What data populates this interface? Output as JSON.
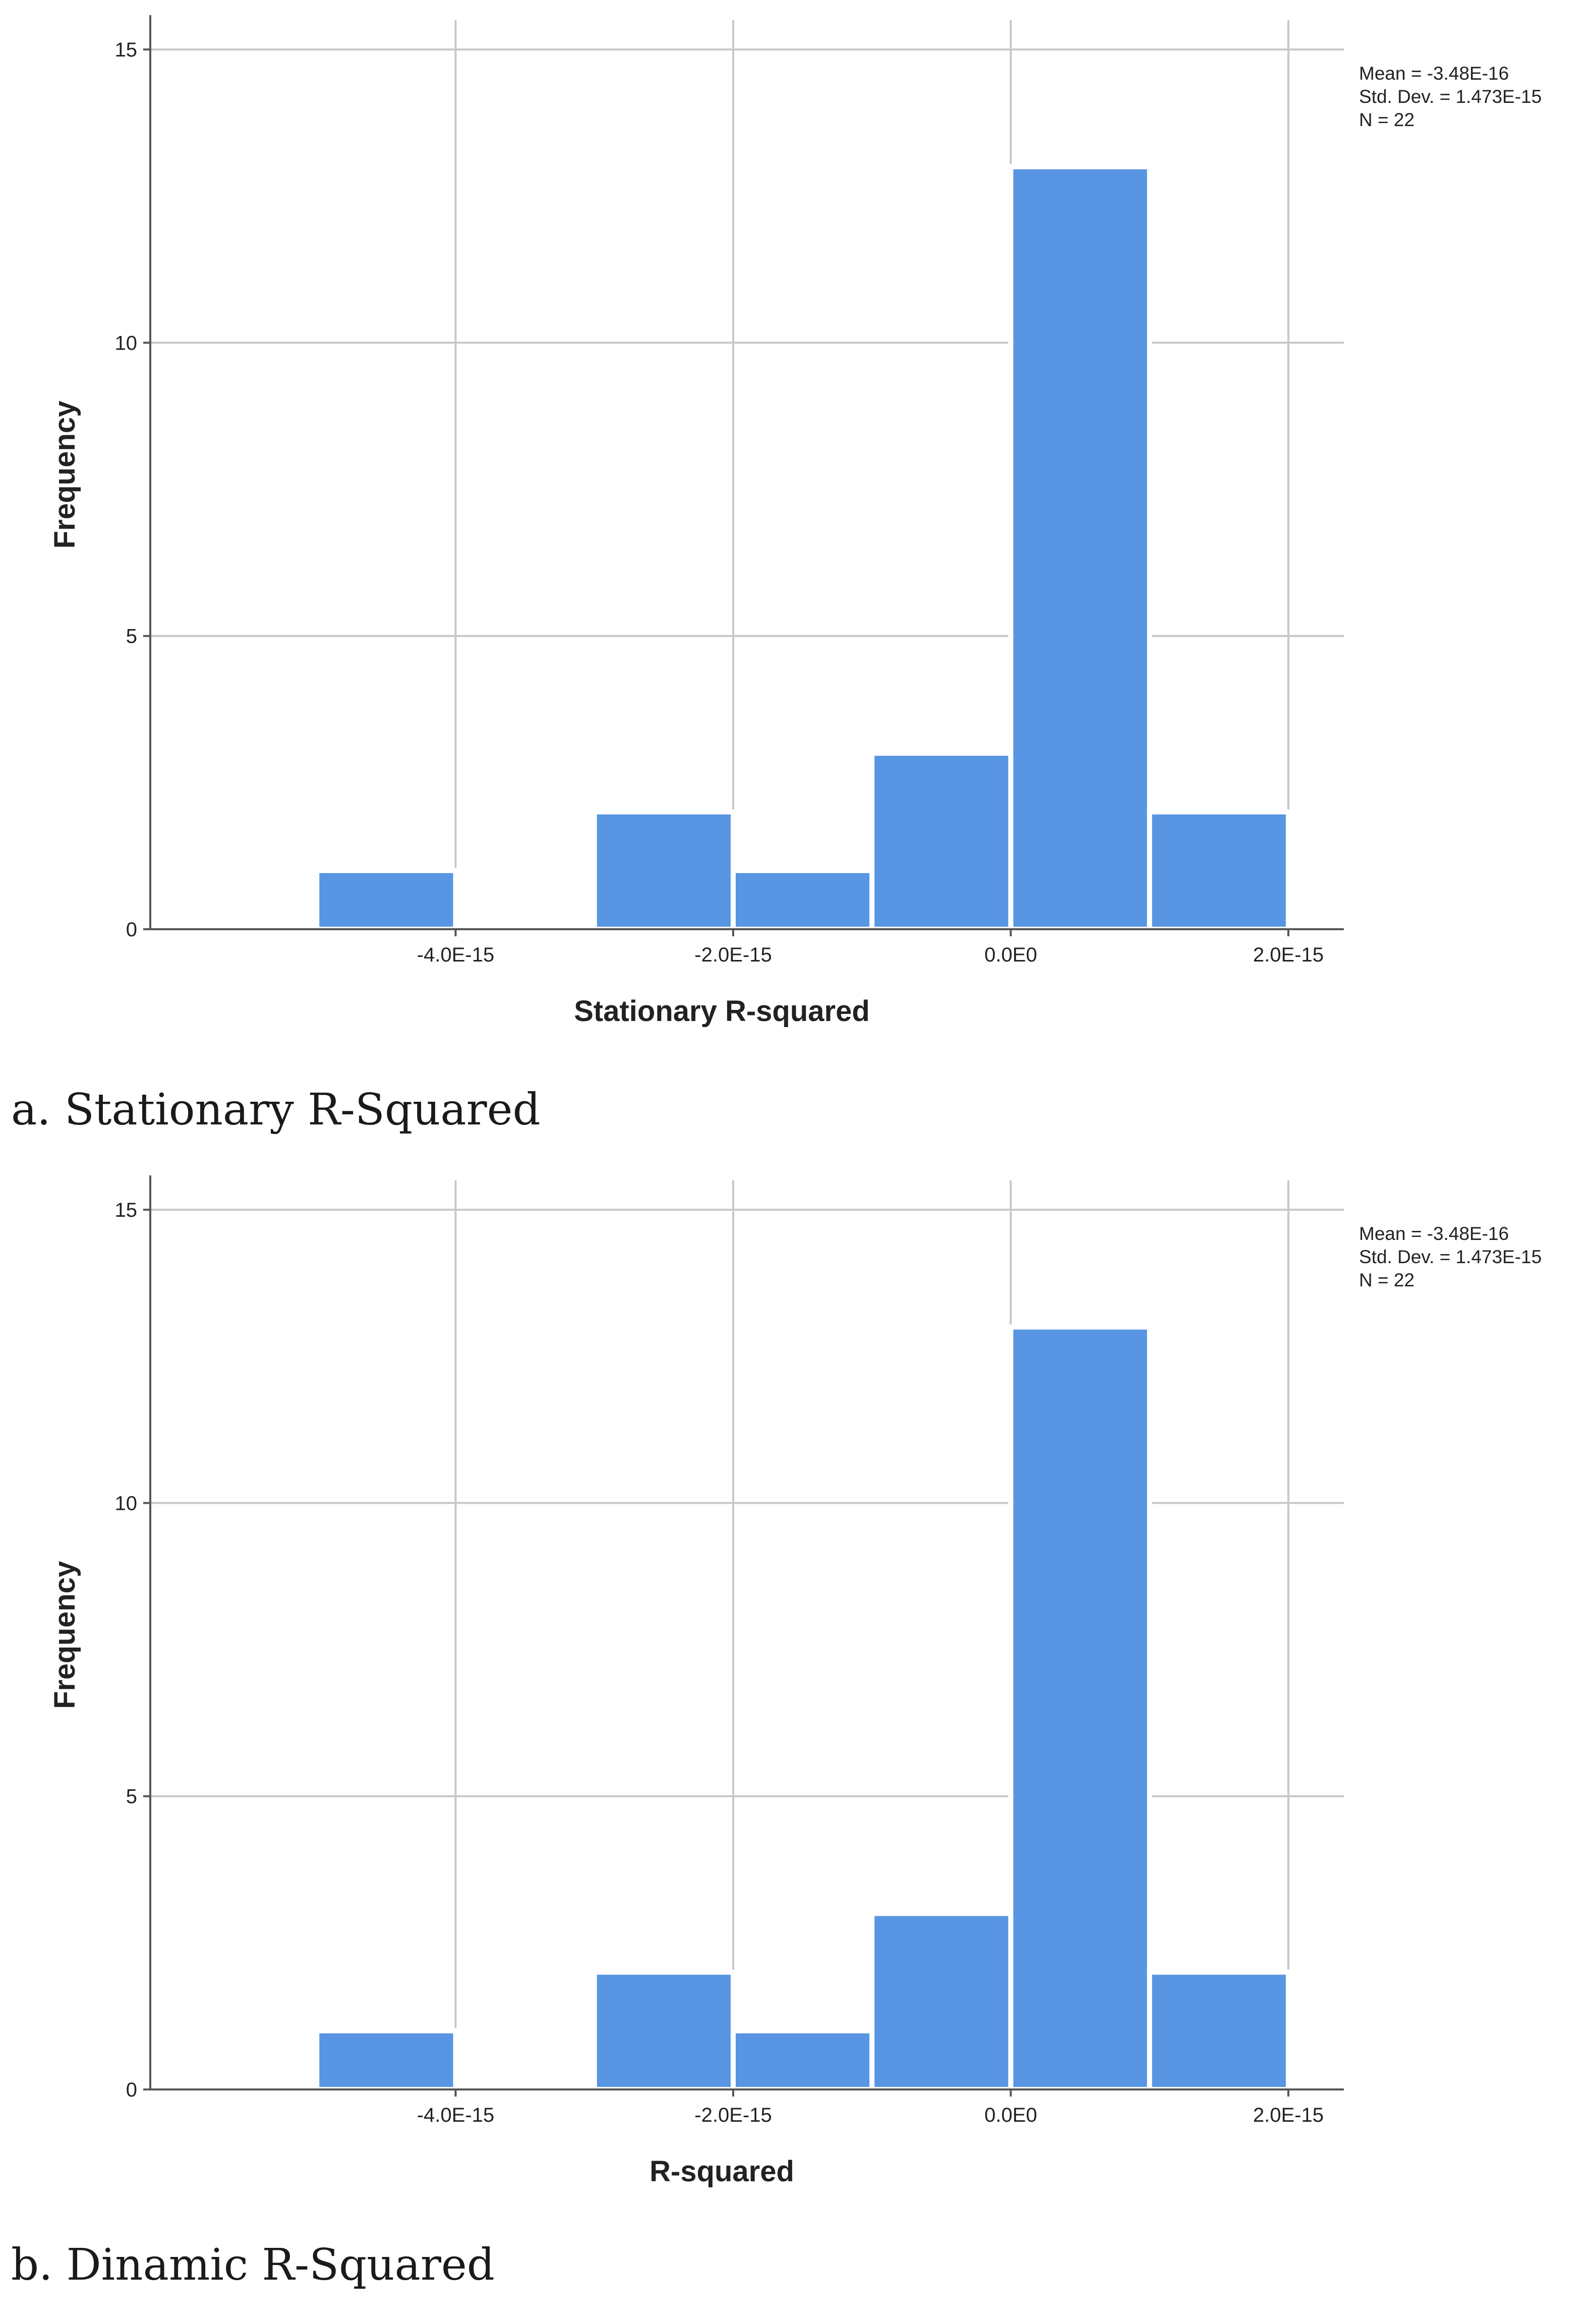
{
  "chart_data": [
    {
      "type": "bar",
      "title": "",
      "xlabel": "Stationary R-squared",
      "ylabel": "Frequency",
      "bins": [
        {
          "start": -5e-15,
          "end": -4e-15,
          "count": 1
        },
        {
          "start": -4e-15,
          "end": -3e-15,
          "count": 0
        },
        {
          "start": -3e-15,
          "end": -2e-15,
          "count": 2
        },
        {
          "start": -2e-15,
          "end": -1e-15,
          "count": 1
        },
        {
          "start": -1e-15,
          "end": 0.0,
          "count": 3
        },
        {
          "start": 0.0,
          "end": 1e-15,
          "count": 13
        },
        {
          "start": 1e-15,
          "end": 2e-15,
          "count": 2
        }
      ],
      "xlim": [
        -6.2e-15,
        2.4e-15
      ],
      "ylim": [
        0,
        15.5
      ],
      "xticks": [
        -4e-15,
        -2e-15,
        0.0,
        2e-15
      ],
      "xtick_labels": [
        "-4.0E-15",
        "-2.0E-15",
        "0.0E0",
        "2.0E-15"
      ],
      "yticks": [
        0,
        5,
        10,
        15
      ],
      "ytick_labels": [
        "0",
        "5",
        "10",
        "15"
      ],
      "grid": true,
      "bar_color": "#5895E3",
      "stats": [
        "Mean = -3.48E-16",
        "Std. Dev. = 1.473E-15",
        "N = 22"
      ],
      "caption": "a. Stationary R-Squared"
    },
    {
      "type": "bar",
      "title": "",
      "xlabel": "R-squared",
      "ylabel": "Frequency",
      "bins": [
        {
          "start": -5e-15,
          "end": -4e-15,
          "count": 1
        },
        {
          "start": -4e-15,
          "end": -3e-15,
          "count": 0
        },
        {
          "start": -3e-15,
          "end": -2e-15,
          "count": 2
        },
        {
          "start": -2e-15,
          "end": -1e-15,
          "count": 1
        },
        {
          "start": -1e-15,
          "end": 0.0,
          "count": 3
        },
        {
          "start": 0.0,
          "end": 1e-15,
          "count": 13
        },
        {
          "start": 1e-15,
          "end": 2e-15,
          "count": 2
        }
      ],
      "xlim": [
        -6.2e-15,
        2.4e-15
      ],
      "ylim": [
        0,
        15.5
      ],
      "xticks": [
        -4e-15,
        -2e-15,
        0.0,
        2e-15
      ],
      "xtick_labels": [
        "-4.0E-15",
        "-2.0E-15",
        "0.0E0",
        "2.0E-15"
      ],
      "yticks": [
        0,
        5,
        10,
        15
      ],
      "ytick_labels": [
        "0",
        "5",
        "10",
        "15"
      ],
      "grid": true,
      "bar_color": "#5895E3",
      "stats": [
        "Mean = -3.48E-16",
        "Std. Dev. = 1.473E-15",
        "N = 22"
      ],
      "caption": "b. Dinamic R-Squared"
    }
  ]
}
